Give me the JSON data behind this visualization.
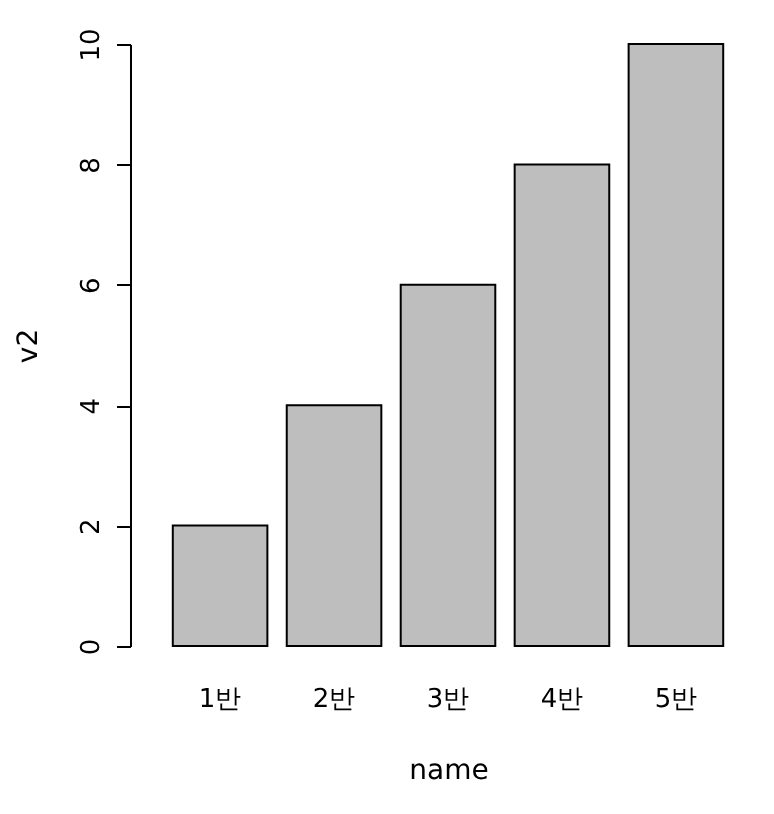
{
  "chart_data": {
    "type": "bar",
    "xlabel": "name",
    "ylabel": "v2",
    "categories": [
      "1반",
      "2반",
      "3반",
      "4반",
      "5반"
    ],
    "values": [
      2,
      4,
      6,
      8,
      10
    ],
    "color": "#bebebe",
    "ylim": [
      0,
      10
    ],
    "yticks": [
      0,
      2,
      4,
      6,
      8,
      10
    ],
    "grid": false
  }
}
